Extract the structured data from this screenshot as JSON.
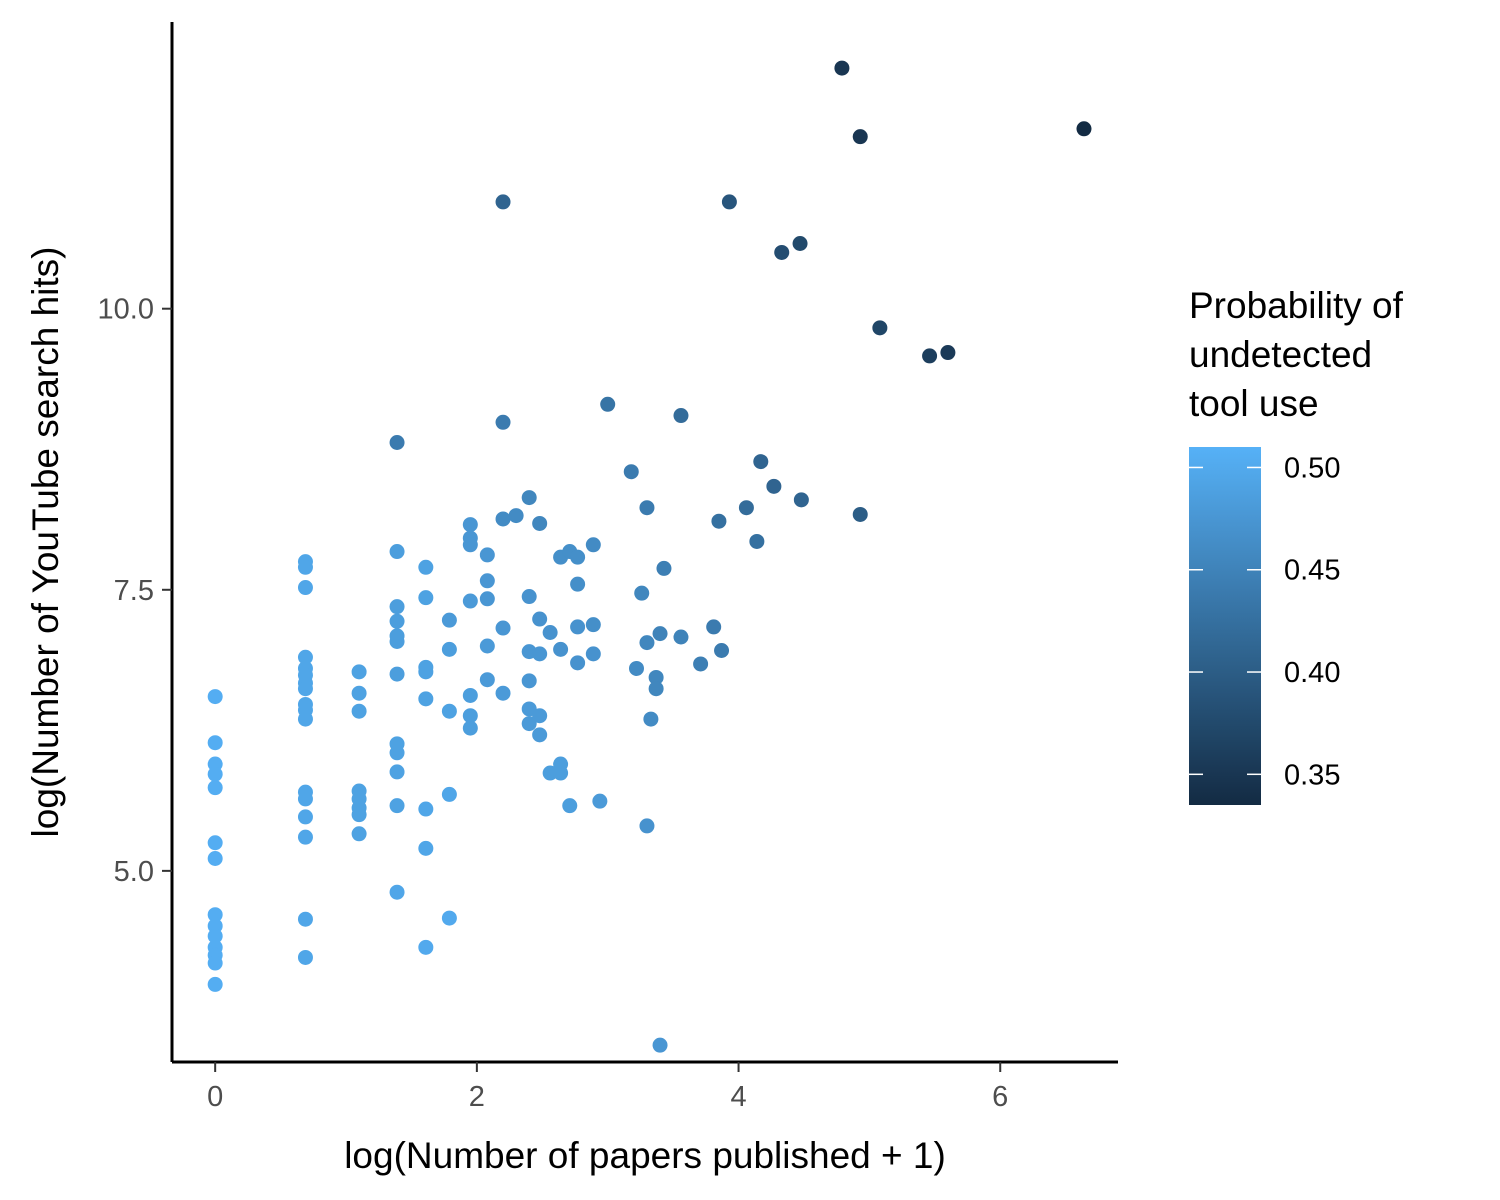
{
  "chart_data": {
    "type": "scatter",
    "xlabel": "log(Number of papers published + 1)",
    "ylabel": "log(Number of YouTube search hits)",
    "xlim": [
      -0.33,
      6.9
    ],
    "ylim": [
      3.3,
      12.55
    ],
    "x_ticks": [
      0,
      2,
      4,
      6
    ],
    "x_tick_labels": [
      "0",
      "2",
      "4",
      "6"
    ],
    "y_ticks": [
      5.0,
      7.5,
      10.0
    ],
    "y_tick_labels": [
      "5.0",
      "7.5",
      "10.0"
    ],
    "grid": false,
    "legend": {
      "position": "right",
      "title_lines": [
        "Probability of",
        "undetected",
        "tool use"
      ],
      "min": 0.335,
      "max": 0.51,
      "breaks": [
        0.5,
        0.45,
        0.4,
        0.35
      ],
      "break_labels": [
        "0.50",
        "0.45",
        "0.40",
        "0.35"
      ],
      "color_low": "#132B43",
      "color_high": "#56B1F7"
    },
    "points": [
      {
        "x": 0,
        "y": 6.55,
        "p": 0.505
      },
      {
        "x": 0,
        "y": 6.14,
        "p": 0.505
      },
      {
        "x": 0,
        "y": 5.95,
        "p": 0.505
      },
      {
        "x": 0,
        "y": 5.86,
        "p": 0.505
      },
      {
        "x": 0,
        "y": 5.74,
        "p": 0.505
      },
      {
        "x": 0,
        "y": 5.25,
        "p": 0.505
      },
      {
        "x": 0,
        "y": 5.11,
        "p": 0.505
      },
      {
        "x": 0,
        "y": 4.61,
        "p": 0.505
      },
      {
        "x": 0,
        "y": 4.51,
        "p": 0.505
      },
      {
        "x": 0,
        "y": 4.42,
        "p": 0.505
      },
      {
        "x": 0,
        "y": 4.32,
        "p": 0.505
      },
      {
        "x": 0,
        "y": 4.25,
        "p": 0.505
      },
      {
        "x": 0,
        "y": 4.18,
        "p": 0.505
      },
      {
        "x": 0,
        "y": 3.99,
        "p": 0.505
      },
      {
        "x": 0.69,
        "y": 7.75,
        "p": 0.495
      },
      {
        "x": 0.69,
        "y": 7.7,
        "p": 0.495
      },
      {
        "x": 0.69,
        "y": 7.52,
        "p": 0.495
      },
      {
        "x": 0.69,
        "y": 6.9,
        "p": 0.495
      },
      {
        "x": 0.69,
        "y": 6.8,
        "p": 0.495
      },
      {
        "x": 0.69,
        "y": 6.74,
        "p": 0.495
      },
      {
        "x": 0.69,
        "y": 6.67,
        "p": 0.495
      },
      {
        "x": 0.69,
        "y": 6.62,
        "p": 0.495
      },
      {
        "x": 0.69,
        "y": 6.48,
        "p": 0.495
      },
      {
        "x": 0.69,
        "y": 6.43,
        "p": 0.495
      },
      {
        "x": 0.69,
        "y": 6.35,
        "p": 0.495
      },
      {
        "x": 0.69,
        "y": 5.7,
        "p": 0.495
      },
      {
        "x": 0.69,
        "y": 5.64,
        "p": 0.495
      },
      {
        "x": 0.69,
        "y": 5.48,
        "p": 0.495
      },
      {
        "x": 0.69,
        "y": 5.3,
        "p": 0.495
      },
      {
        "x": 0.69,
        "y": 4.57,
        "p": 0.495
      },
      {
        "x": 0.69,
        "y": 4.23,
        "p": 0.495
      },
      {
        "x": 1.1,
        "y": 6.77,
        "p": 0.49
      },
      {
        "x": 1.1,
        "y": 6.58,
        "p": 0.49
      },
      {
        "x": 1.1,
        "y": 6.42,
        "p": 0.49
      },
      {
        "x": 1.1,
        "y": 5.71,
        "p": 0.49
      },
      {
        "x": 1.1,
        "y": 5.64,
        "p": 0.49
      },
      {
        "x": 1.1,
        "y": 5.56,
        "p": 0.49
      },
      {
        "x": 1.1,
        "y": 5.5,
        "p": 0.49
      },
      {
        "x": 1.1,
        "y": 5.33,
        "p": 0.49
      },
      {
        "x": 1.39,
        "y": 8.81,
        "p": 0.44
      },
      {
        "x": 1.39,
        "y": 7.84,
        "p": 0.485
      },
      {
        "x": 1.39,
        "y": 7.35,
        "p": 0.485
      },
      {
        "x": 1.39,
        "y": 7.22,
        "p": 0.485
      },
      {
        "x": 1.39,
        "y": 7.09,
        "p": 0.485
      },
      {
        "x": 1.39,
        "y": 7.04,
        "p": 0.485
      },
      {
        "x": 1.39,
        "y": 6.75,
        "p": 0.485
      },
      {
        "x": 1.39,
        "y": 6.13,
        "p": 0.49
      },
      {
        "x": 1.39,
        "y": 6.05,
        "p": 0.49
      },
      {
        "x": 1.39,
        "y": 5.88,
        "p": 0.49
      },
      {
        "x": 1.39,
        "y": 5.58,
        "p": 0.49
      },
      {
        "x": 1.39,
        "y": 4.81,
        "p": 0.495
      },
      {
        "x": 1.61,
        "y": 7.7,
        "p": 0.49
      },
      {
        "x": 1.61,
        "y": 7.43,
        "p": 0.49
      },
      {
        "x": 1.61,
        "y": 6.81,
        "p": 0.49
      },
      {
        "x": 1.61,
        "y": 6.77,
        "p": 0.49
      },
      {
        "x": 1.61,
        "y": 6.53,
        "p": 0.49
      },
      {
        "x": 1.61,
        "y": 5.55,
        "p": 0.495
      },
      {
        "x": 1.61,
        "y": 5.2,
        "p": 0.495
      },
      {
        "x": 1.61,
        "y": 4.32,
        "p": 0.5
      },
      {
        "x": 1.79,
        "y": 7.23,
        "p": 0.48
      },
      {
        "x": 1.79,
        "y": 6.97,
        "p": 0.485
      },
      {
        "x": 1.79,
        "y": 6.42,
        "p": 0.49
      },
      {
        "x": 1.79,
        "y": 5.68,
        "p": 0.495
      },
      {
        "x": 1.79,
        "y": 4.58,
        "p": 0.5
      },
      {
        "x": 1.95,
        "y": 8.08,
        "p": 0.475
      },
      {
        "x": 1.95,
        "y": 7.96,
        "p": 0.475
      },
      {
        "x": 1.95,
        "y": 7.9,
        "p": 0.475
      },
      {
        "x": 1.95,
        "y": 7.4,
        "p": 0.48
      },
      {
        "x": 1.95,
        "y": 6.56,
        "p": 0.485
      },
      {
        "x": 1.95,
        "y": 6.38,
        "p": 0.485
      },
      {
        "x": 1.95,
        "y": 6.27,
        "p": 0.485
      },
      {
        "x": 2.08,
        "y": 7.81,
        "p": 0.475
      },
      {
        "x": 2.08,
        "y": 7.58,
        "p": 0.475
      },
      {
        "x": 2.08,
        "y": 7.42,
        "p": 0.475
      },
      {
        "x": 2.08,
        "y": 7.0,
        "p": 0.48
      },
      {
        "x": 2.08,
        "y": 6.7,
        "p": 0.48
      },
      {
        "x": 2.2,
        "y": 10.95,
        "p": 0.41
      },
      {
        "x": 2.2,
        "y": 8.99,
        "p": 0.44
      },
      {
        "x": 2.2,
        "y": 8.13,
        "p": 0.46
      },
      {
        "x": 2.2,
        "y": 7.16,
        "p": 0.475
      },
      {
        "x": 2.2,
        "y": 6.58,
        "p": 0.48
      },
      {
        "x": 2.3,
        "y": 8.16,
        "p": 0.46
      },
      {
        "x": 2.4,
        "y": 8.32,
        "p": 0.455
      },
      {
        "x": 2.4,
        "y": 7.44,
        "p": 0.47
      },
      {
        "x": 2.4,
        "y": 6.95,
        "p": 0.475
      },
      {
        "x": 2.4,
        "y": 6.69,
        "p": 0.475
      },
      {
        "x": 2.4,
        "y": 6.44,
        "p": 0.48
      },
      {
        "x": 2.4,
        "y": 6.31,
        "p": 0.48
      },
      {
        "x": 2.48,
        "y": 8.09,
        "p": 0.455
      },
      {
        "x": 2.48,
        "y": 7.24,
        "p": 0.47
      },
      {
        "x": 2.48,
        "y": 6.93,
        "p": 0.475
      },
      {
        "x": 2.48,
        "y": 6.38,
        "p": 0.48
      },
      {
        "x": 2.48,
        "y": 6.21,
        "p": 0.48
      },
      {
        "x": 2.56,
        "y": 7.12,
        "p": 0.47
      },
      {
        "x": 2.56,
        "y": 5.87,
        "p": 0.485
      },
      {
        "x": 2.64,
        "y": 7.79,
        "p": 0.465
      },
      {
        "x": 2.64,
        "y": 6.97,
        "p": 0.47
      },
      {
        "x": 2.64,
        "y": 5.95,
        "p": 0.485
      },
      {
        "x": 2.64,
        "y": 5.87,
        "p": 0.485
      },
      {
        "x": 2.71,
        "y": 7.84,
        "p": 0.465
      },
      {
        "x": 2.71,
        "y": 5.58,
        "p": 0.485
      },
      {
        "x": 2.77,
        "y": 7.79,
        "p": 0.465
      },
      {
        "x": 2.77,
        "y": 7.55,
        "p": 0.465
      },
      {
        "x": 2.77,
        "y": 7.17,
        "p": 0.47
      },
      {
        "x": 2.77,
        "y": 6.85,
        "p": 0.47
      },
      {
        "x": 2.89,
        "y": 7.9,
        "p": 0.46
      },
      {
        "x": 2.89,
        "y": 7.19,
        "p": 0.465
      },
      {
        "x": 2.89,
        "y": 6.93,
        "p": 0.47
      },
      {
        "x": 2.94,
        "y": 5.62,
        "p": 0.48
      },
      {
        "x": 3.0,
        "y": 9.15,
        "p": 0.43
      },
      {
        "x": 3.18,
        "y": 8.55,
        "p": 0.44
      },
      {
        "x": 3.22,
        "y": 6.8,
        "p": 0.46
      },
      {
        "x": 3.26,
        "y": 7.47,
        "p": 0.455
      },
      {
        "x": 3.3,
        "y": 8.23,
        "p": 0.44
      },
      {
        "x": 3.3,
        "y": 7.03,
        "p": 0.455
      },
      {
        "x": 3.3,
        "y": 5.4,
        "p": 0.47
      },
      {
        "x": 3.33,
        "y": 6.35,
        "p": 0.46
      },
      {
        "x": 3.37,
        "y": 6.72,
        "p": 0.455
      },
      {
        "x": 3.37,
        "y": 6.62,
        "p": 0.455
      },
      {
        "x": 3.4,
        "y": 7.11,
        "p": 0.45
      },
      {
        "x": 3.4,
        "y": 3.45,
        "p": 0.475
      },
      {
        "x": 3.43,
        "y": 7.69,
        "p": 0.445
      },
      {
        "x": 3.56,
        "y": 9.05,
        "p": 0.42
      },
      {
        "x": 3.56,
        "y": 7.08,
        "p": 0.45
      },
      {
        "x": 3.71,
        "y": 6.84,
        "p": 0.445
      },
      {
        "x": 3.81,
        "y": 7.17,
        "p": 0.44
      },
      {
        "x": 3.85,
        "y": 8.11,
        "p": 0.425
      },
      {
        "x": 3.87,
        "y": 6.96,
        "p": 0.44
      },
      {
        "x": 3.93,
        "y": 10.95,
        "p": 0.39
      },
      {
        "x": 4.06,
        "y": 8.23,
        "p": 0.42
      },
      {
        "x": 4.14,
        "y": 7.93,
        "p": 0.425
      },
      {
        "x": 4.17,
        "y": 8.64,
        "p": 0.41
      },
      {
        "x": 4.27,
        "y": 8.42,
        "p": 0.41
      },
      {
        "x": 4.33,
        "y": 10.5,
        "p": 0.38
      },
      {
        "x": 4.47,
        "y": 10.58,
        "p": 0.375
      },
      {
        "x": 4.48,
        "y": 8.3,
        "p": 0.41
      },
      {
        "x": 4.79,
        "y": 12.14,
        "p": 0.35
      },
      {
        "x": 4.93,
        "y": 11.53,
        "p": 0.35
      },
      {
        "x": 4.93,
        "y": 8.17,
        "p": 0.4
      },
      {
        "x": 5.08,
        "y": 9.83,
        "p": 0.37
      },
      {
        "x": 5.46,
        "y": 9.58,
        "p": 0.36
      },
      {
        "x": 5.6,
        "y": 9.61,
        "p": 0.355
      },
      {
        "x": 6.64,
        "y": 11.6,
        "p": 0.335
      }
    ]
  }
}
